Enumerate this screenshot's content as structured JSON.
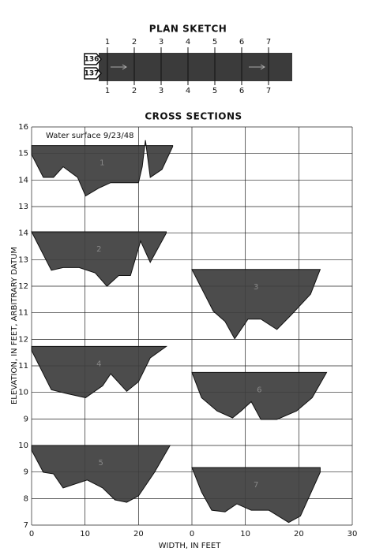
{
  "plan_sketch": {
    "title": "PLAN SKETCH",
    "sections": [
      "1",
      "2",
      "3",
      "4",
      "5",
      "6",
      "7"
    ],
    "stations": [
      "136",
      "137"
    ]
  },
  "cross_sections": {
    "title": "CROSS SECTIONS",
    "y_label": "ELEVATION, IN FEET, ARBITRARY DATUM",
    "x_label": "WIDTH, IN FEET",
    "annotation": "Water surface 9/23/48",
    "columns": {
      "left": {
        "xlim": [
          0,
          30
        ],
        "xticks": [
          0,
          10,
          20
        ]
      },
      "right": {
        "xlim": [
          0,
          30
        ],
        "xticks": [
          0,
          10,
          20,
          30
        ]
      }
    },
    "rows": [
      {
        "ylim": [
          13,
          16
        ],
        "yticks": [
          16,
          15,
          14,
          13
        ],
        "left": {
          "label": "1",
          "water_surface": 15.3,
          "x": [
            0,
            2.2,
            4.1,
            5.9,
            8.6,
            10.1,
            12.6,
            14.8,
            17.0,
            20.0,
            20.7,
            21.3,
            22.2,
            24.4,
            26.4
          ],
          "bed": [
            14.96,
            14.1,
            14.1,
            14.5,
            14.1,
            13.4,
            13.7,
            13.9,
            13.9,
            13.9,
            14.5,
            15.5,
            14.1,
            14.4,
            15.26
          ]
        }
      },
      {
        "ylim": [
          11,
          14
        ],
        "yticks": [
          14,
          13,
          12,
          11
        ],
        "left": {
          "label": "2",
          "water_surface": 14.05,
          "x": [
            0,
            3.7,
            5.9,
            8.9,
            11.9,
            14.1,
            16.3,
            18.5,
            20.4,
            22.2,
            25.2
          ],
          "bed": [
            14.05,
            12.6,
            12.7,
            12.7,
            12.5,
            12.0,
            12.4,
            12.4,
            13.7,
            12.9,
            14.0
          ]
        },
        "right": {
          "label": "3",
          "water_surface": 12.63,
          "x": [
            0,
            4,
            6.2,
            8,
            10.5,
            12.9,
            15.9,
            18.5,
            22.2,
            24
          ],
          "bed": [
            12.63,
            11.06,
            10.67,
            10.02,
            10.76,
            10.76,
            10.37,
            10.9,
            11.7,
            12.63
          ]
        }
      },
      {
        "ylim": [
          9,
          12
        ],
        "yticks": [
          12,
          11,
          10,
          9
        ],
        "left": {
          "label": "4",
          "water_surface": 11.73,
          "x": [
            0,
            3.7,
            6.7,
            10.1,
            13.3,
            14.8,
            17.8,
            20,
            22.2,
            25.2
          ],
          "bed": [
            11.58,
            10.1,
            9.95,
            9.8,
            10.25,
            10.7,
            10.04,
            10.4,
            11.3,
            11.73
          ]
        },
        "right": {
          "label": "6",
          "water_surface": 10.75,
          "x": [
            0,
            1.8,
            4.7,
            7.6,
            9.2,
            11.1,
            12.9,
            15.9,
            19.6,
            22.5,
            25.2
          ],
          "bed": [
            10.75,
            9.8,
            9.3,
            9.04,
            9.3,
            9.65,
            8.98,
            8.98,
            9.3,
            9.8,
            10.75
          ]
        }
      },
      {
        "ylim": [
          7,
          10
        ],
        "yticks": [
          10,
          9,
          8,
          7
        ],
        "left": {
          "label": "5",
          "water_surface": 10,
          "x": [
            0,
            2.2,
            4.1,
            5.9,
            10.4,
            13.3,
            15.6,
            17.8,
            20,
            23,
            25.9
          ],
          "bed": [
            9.82,
            8.99,
            8.93,
            8.4,
            8.7,
            8.4,
            7.95,
            7.86,
            8.1,
            8.99,
            10
          ]
        },
        "right": {
          "label": "7",
          "water_surface": 9.17,
          "x": [
            0,
            1.8,
            3.7,
            6.2,
            8.4,
            11.1,
            14.4,
            18.1,
            20.3,
            24
          ],
          "bed": [
            9.17,
            8.25,
            7.56,
            7.5,
            7.8,
            7.56,
            7.56,
            7.1,
            7.34,
            8.99
          ]
        }
      }
    ]
  }
}
